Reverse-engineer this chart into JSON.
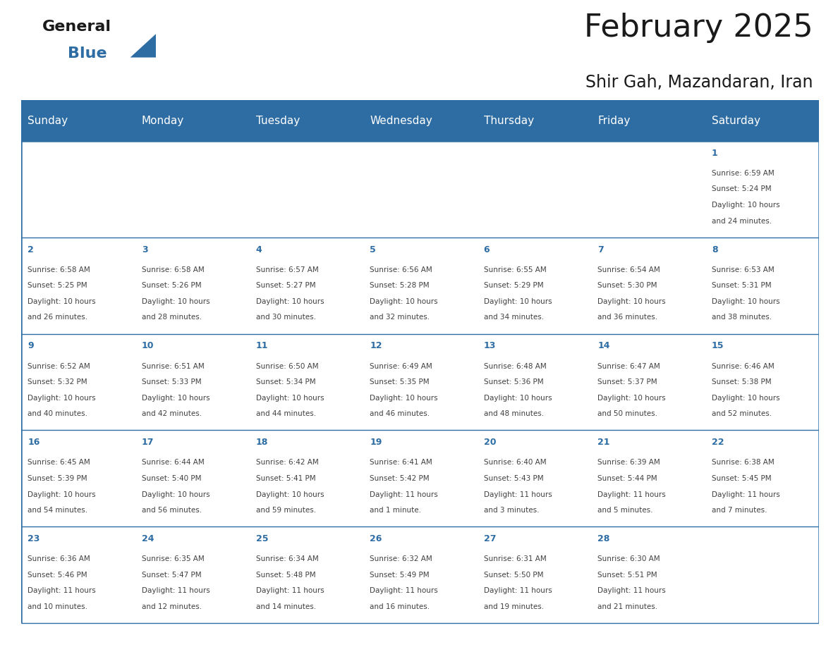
{
  "title": "February 2025",
  "subtitle": "Shir Gah, Mazandaran, Iran",
  "header_bg": "#2E6DA4",
  "header_text": "#FFFFFF",
  "cell_bg": "#FFFFFF",
  "row_sep_color": "#2E6DA4",
  "text_color": "#404040",
  "day_num_color": "#2E6DA4",
  "title_color": "#1a1a1a",
  "logo_general_color": "#1a1a1a",
  "logo_blue_color": "#2E6DA4",
  "day_names": [
    "Sunday",
    "Monday",
    "Tuesday",
    "Wednesday",
    "Thursday",
    "Friday",
    "Saturday"
  ],
  "days": [
    {
      "day": 1,
      "col": 6,
      "row": 0,
      "sunrise": "6:59 AM",
      "sunset": "5:24 PM",
      "daylight_h": "10 hours",
      "daylight_m": "24 minutes."
    },
    {
      "day": 2,
      "col": 0,
      "row": 1,
      "sunrise": "6:58 AM",
      "sunset": "5:25 PM",
      "daylight_h": "10 hours",
      "daylight_m": "26 minutes."
    },
    {
      "day": 3,
      "col": 1,
      "row": 1,
      "sunrise": "6:58 AM",
      "sunset": "5:26 PM",
      "daylight_h": "10 hours",
      "daylight_m": "28 minutes."
    },
    {
      "day": 4,
      "col": 2,
      "row": 1,
      "sunrise": "6:57 AM",
      "sunset": "5:27 PM",
      "daylight_h": "10 hours",
      "daylight_m": "30 minutes."
    },
    {
      "day": 5,
      "col": 3,
      "row": 1,
      "sunrise": "6:56 AM",
      "sunset": "5:28 PM",
      "daylight_h": "10 hours",
      "daylight_m": "32 minutes."
    },
    {
      "day": 6,
      "col": 4,
      "row": 1,
      "sunrise": "6:55 AM",
      "sunset": "5:29 PM",
      "daylight_h": "10 hours",
      "daylight_m": "34 minutes."
    },
    {
      "day": 7,
      "col": 5,
      "row": 1,
      "sunrise": "6:54 AM",
      "sunset": "5:30 PM",
      "daylight_h": "10 hours",
      "daylight_m": "36 minutes."
    },
    {
      "day": 8,
      "col": 6,
      "row": 1,
      "sunrise": "6:53 AM",
      "sunset": "5:31 PM",
      "daylight_h": "10 hours",
      "daylight_m": "38 minutes."
    },
    {
      "day": 9,
      "col": 0,
      "row": 2,
      "sunrise": "6:52 AM",
      "sunset": "5:32 PM",
      "daylight_h": "10 hours",
      "daylight_m": "40 minutes."
    },
    {
      "day": 10,
      "col": 1,
      "row": 2,
      "sunrise": "6:51 AM",
      "sunset": "5:33 PM",
      "daylight_h": "10 hours",
      "daylight_m": "42 minutes."
    },
    {
      "day": 11,
      "col": 2,
      "row": 2,
      "sunrise": "6:50 AM",
      "sunset": "5:34 PM",
      "daylight_h": "10 hours",
      "daylight_m": "44 minutes."
    },
    {
      "day": 12,
      "col": 3,
      "row": 2,
      "sunrise": "6:49 AM",
      "sunset": "5:35 PM",
      "daylight_h": "10 hours",
      "daylight_m": "46 minutes."
    },
    {
      "day": 13,
      "col": 4,
      "row": 2,
      "sunrise": "6:48 AM",
      "sunset": "5:36 PM",
      "daylight_h": "10 hours",
      "daylight_m": "48 minutes."
    },
    {
      "day": 14,
      "col": 5,
      "row": 2,
      "sunrise": "6:47 AM",
      "sunset": "5:37 PM",
      "daylight_h": "10 hours",
      "daylight_m": "50 minutes."
    },
    {
      "day": 15,
      "col": 6,
      "row": 2,
      "sunrise": "6:46 AM",
      "sunset": "5:38 PM",
      "daylight_h": "10 hours",
      "daylight_m": "52 minutes."
    },
    {
      "day": 16,
      "col": 0,
      "row": 3,
      "sunrise": "6:45 AM",
      "sunset": "5:39 PM",
      "daylight_h": "10 hours",
      "daylight_m": "54 minutes."
    },
    {
      "day": 17,
      "col": 1,
      "row": 3,
      "sunrise": "6:44 AM",
      "sunset": "5:40 PM",
      "daylight_h": "10 hours",
      "daylight_m": "56 minutes."
    },
    {
      "day": 18,
      "col": 2,
      "row": 3,
      "sunrise": "6:42 AM",
      "sunset": "5:41 PM",
      "daylight_h": "10 hours",
      "daylight_m": "59 minutes."
    },
    {
      "day": 19,
      "col": 3,
      "row": 3,
      "sunrise": "6:41 AM",
      "sunset": "5:42 PM",
      "daylight_h": "11 hours",
      "daylight_m": "1 minute."
    },
    {
      "day": 20,
      "col": 4,
      "row": 3,
      "sunrise": "6:40 AM",
      "sunset": "5:43 PM",
      "daylight_h": "11 hours",
      "daylight_m": "3 minutes."
    },
    {
      "day": 21,
      "col": 5,
      "row": 3,
      "sunrise": "6:39 AM",
      "sunset": "5:44 PM",
      "daylight_h": "11 hours",
      "daylight_m": "5 minutes."
    },
    {
      "day": 22,
      "col": 6,
      "row": 3,
      "sunrise": "6:38 AM",
      "sunset": "5:45 PM",
      "daylight_h": "11 hours",
      "daylight_m": "7 minutes."
    },
    {
      "day": 23,
      "col": 0,
      "row": 4,
      "sunrise": "6:36 AM",
      "sunset": "5:46 PM",
      "daylight_h": "11 hours",
      "daylight_m": "10 minutes."
    },
    {
      "day": 24,
      "col": 1,
      "row": 4,
      "sunrise": "6:35 AM",
      "sunset": "5:47 PM",
      "daylight_h": "11 hours",
      "daylight_m": "12 minutes."
    },
    {
      "day": 25,
      "col": 2,
      "row": 4,
      "sunrise": "6:34 AM",
      "sunset": "5:48 PM",
      "daylight_h": "11 hours",
      "daylight_m": "14 minutes."
    },
    {
      "day": 26,
      "col": 3,
      "row": 4,
      "sunrise": "6:32 AM",
      "sunset": "5:49 PM",
      "daylight_h": "11 hours",
      "daylight_m": "16 minutes."
    },
    {
      "day": 27,
      "col": 4,
      "row": 4,
      "sunrise": "6:31 AM",
      "sunset": "5:50 PM",
      "daylight_h": "11 hours",
      "daylight_m": "19 minutes."
    },
    {
      "day": 28,
      "col": 5,
      "row": 4,
      "sunrise": "6:30 AM",
      "sunset": "5:51 PM",
      "daylight_h": "11 hours",
      "daylight_m": "21 minutes."
    }
  ],
  "num_rows": 5,
  "num_cols": 7,
  "title_fontsize": 32,
  "subtitle_fontsize": 17,
  "header_fontsize": 11,
  "day_num_fontsize": 9,
  "cell_text_fontsize": 7.5
}
